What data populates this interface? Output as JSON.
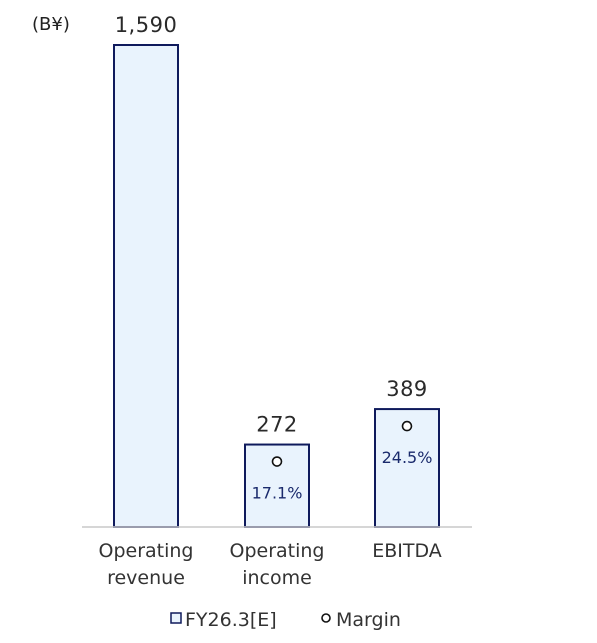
{
  "chart_data": {
    "type": "bar",
    "unit_label": "(B¥)",
    "categories": [
      {
        "line1": "Operating",
        "line2": "revenue"
      },
      {
        "line1": "Operating",
        "line2": "income"
      },
      {
        "line1": "EBITDA",
        "line2": ""
      }
    ],
    "series": [
      {
        "name": "FY26.3[E]",
        "values": [
          1590,
          272,
          389
        ],
        "value_labels": [
          "1,590",
          "272",
          "389"
        ]
      }
    ],
    "margins": {
      "name": "Margin",
      "values": [
        null,
        17.1,
        24.5
      ],
      "labels": [
        "",
        "17.1%",
        "24.5%"
      ]
    },
    "ylim": [
      0,
      1590
    ],
    "colors": {
      "bar_fill": "#e9f3fd",
      "bar_stroke": "#0f1a5c",
      "axis": "#c8c8c8",
      "margin_label": "#1a2a6c"
    },
    "legend": {
      "position": "bottom",
      "bar_label": "FY26.3[E]",
      "marker_label": "Margin"
    }
  }
}
